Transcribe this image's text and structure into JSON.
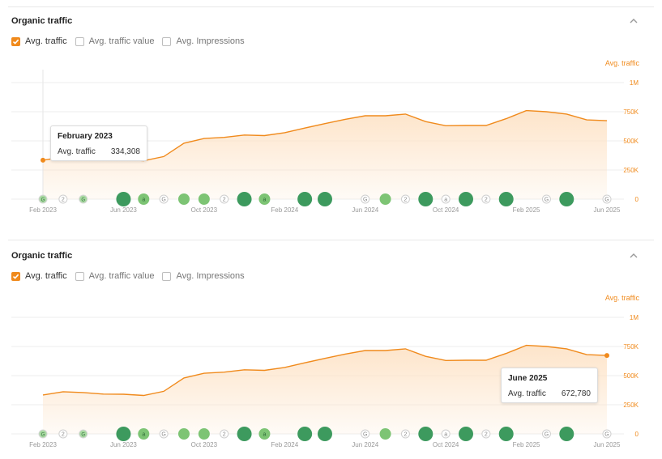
{
  "panels": [
    {
      "title": "Organic traffic",
      "checkboxes": [
        {
          "label": "Avg. traffic",
          "checked": true
        },
        {
          "label": "Avg. traffic value",
          "checked": false
        },
        {
          "label": "Avg. Impressions",
          "checked": false
        }
      ],
      "series_tag": "Avg. traffic",
      "tooltip": {
        "date": "February 2023",
        "metric": "Avg. traffic",
        "value": "334,308",
        "index": 0
      }
    },
    {
      "title": "Organic traffic",
      "checkboxes": [
        {
          "label": "Avg. traffic",
          "checked": true
        },
        {
          "label": "Avg. traffic value",
          "checked": false
        },
        {
          "label": "Avg. Impressions",
          "checked": false
        }
      ],
      "series_tag": "Avg. traffic",
      "tooltip": {
        "date": "June 2025",
        "metric": "Avg. traffic",
        "value": "672,780",
        "index": 28
      }
    }
  ],
  "colors": {
    "line": "#f08a1c",
    "area": "#fde3c7",
    "grid": "#eeeeee",
    "axis_label": "#999999",
    "y_label": "#f08a1c",
    "marker_dark": "#3d9a5e",
    "marker_light": "#7dc474"
  },
  "chart_data": {
    "type": "area",
    "x": [
      "Feb 2023",
      "Mar 2023",
      "Apr 2023",
      "May 2023",
      "Jun 2023",
      "Jul 2023",
      "Aug 2023",
      "Sep 2023",
      "Oct 2023",
      "Nov 2023",
      "Dec 2023",
      "Jan 2024",
      "Feb 2024",
      "Mar 2024",
      "Apr 2024",
      "May 2024",
      "Jun 2024",
      "Jul 2024",
      "Aug 2024",
      "Sep 2024",
      "Oct 2024",
      "Nov 2024",
      "Dec 2024",
      "Jan 2025",
      "Feb 2025",
      "Mar 2025",
      "Apr 2025",
      "May 2025",
      "Jun 2025"
    ],
    "x_tick_labels": [
      "Feb 2023",
      "Jun 2023",
      "Oct 2023",
      "Feb 2024",
      "Jun 2024",
      "Oct 2024",
      "Feb 2025",
      "Jun 2025"
    ],
    "series": [
      {
        "name": "Avg. traffic",
        "values": [
          334308,
          362000,
          355000,
          342000,
          340000,
          330000,
          365000,
          480000,
          520000,
          530000,
          550000,
          545000,
          570000,
          610000,
          648000,
          685000,
          715000,
          715000,
          730000,
          665000,
          630000,
          632000,
          632000,
          690000,
          760000,
          750000,
          730000,
          680000,
          672780
        ]
      }
    ],
    "y_ticks": [
      "0",
      "250K",
      "500K",
      "750K",
      "1M"
    ],
    "ylim": [
      0,
      1000000
    ],
    "y_axis_side": "right",
    "grid": true,
    "events": [
      {
        "x": "Feb 2023",
        "kind": "small-light",
        "label": "G"
      },
      {
        "x": "Mar 2023",
        "kind": "outline",
        "label": "2"
      },
      {
        "x": "Apr 2023",
        "kind": "small-light",
        "label": "G"
      },
      {
        "x": "Jun 2023",
        "kind": "big-dark",
        "label": ""
      },
      {
        "x": "Jul 2023",
        "kind": "mid-light",
        "label": "a"
      },
      {
        "x": "Aug 2023",
        "kind": "outline",
        "label": "G"
      },
      {
        "x": "Sep 2023",
        "kind": "mid-light",
        "label": ""
      },
      {
        "x": "Oct 2023",
        "kind": "mid-light",
        "label": ""
      },
      {
        "x": "Nov 2023",
        "kind": "outline",
        "label": "2"
      },
      {
        "x": "Dec 2023",
        "kind": "big-dark",
        "label": ""
      },
      {
        "x": "Jan 2024",
        "kind": "mid-light",
        "label": "a"
      },
      {
        "x": "Mar 2024",
        "kind": "big-dark",
        "label": ""
      },
      {
        "x": "Apr 2024",
        "kind": "big-dark",
        "label": ""
      },
      {
        "x": "Jun 2024",
        "kind": "outline",
        "label": "G"
      },
      {
        "x": "Jul 2024",
        "kind": "mid-light",
        "label": ""
      },
      {
        "x": "Aug 2024",
        "kind": "outline",
        "label": "2"
      },
      {
        "x": "Sep 2024",
        "kind": "big-dark",
        "label": ""
      },
      {
        "x": "Oct 2024",
        "kind": "outline",
        "label": "a"
      },
      {
        "x": "Nov 2024",
        "kind": "big-dark",
        "label": ""
      },
      {
        "x": "Dec 2024",
        "kind": "outline",
        "label": "2"
      },
      {
        "x": "Jan 2025",
        "kind": "big-dark",
        "label": ""
      },
      {
        "x": "Mar 2025",
        "kind": "outline",
        "label": "G"
      },
      {
        "x": "Apr 2025",
        "kind": "big-dark",
        "label": ""
      },
      {
        "x": "Jun 2025",
        "kind": "outline",
        "label": "G"
      }
    ]
  }
}
